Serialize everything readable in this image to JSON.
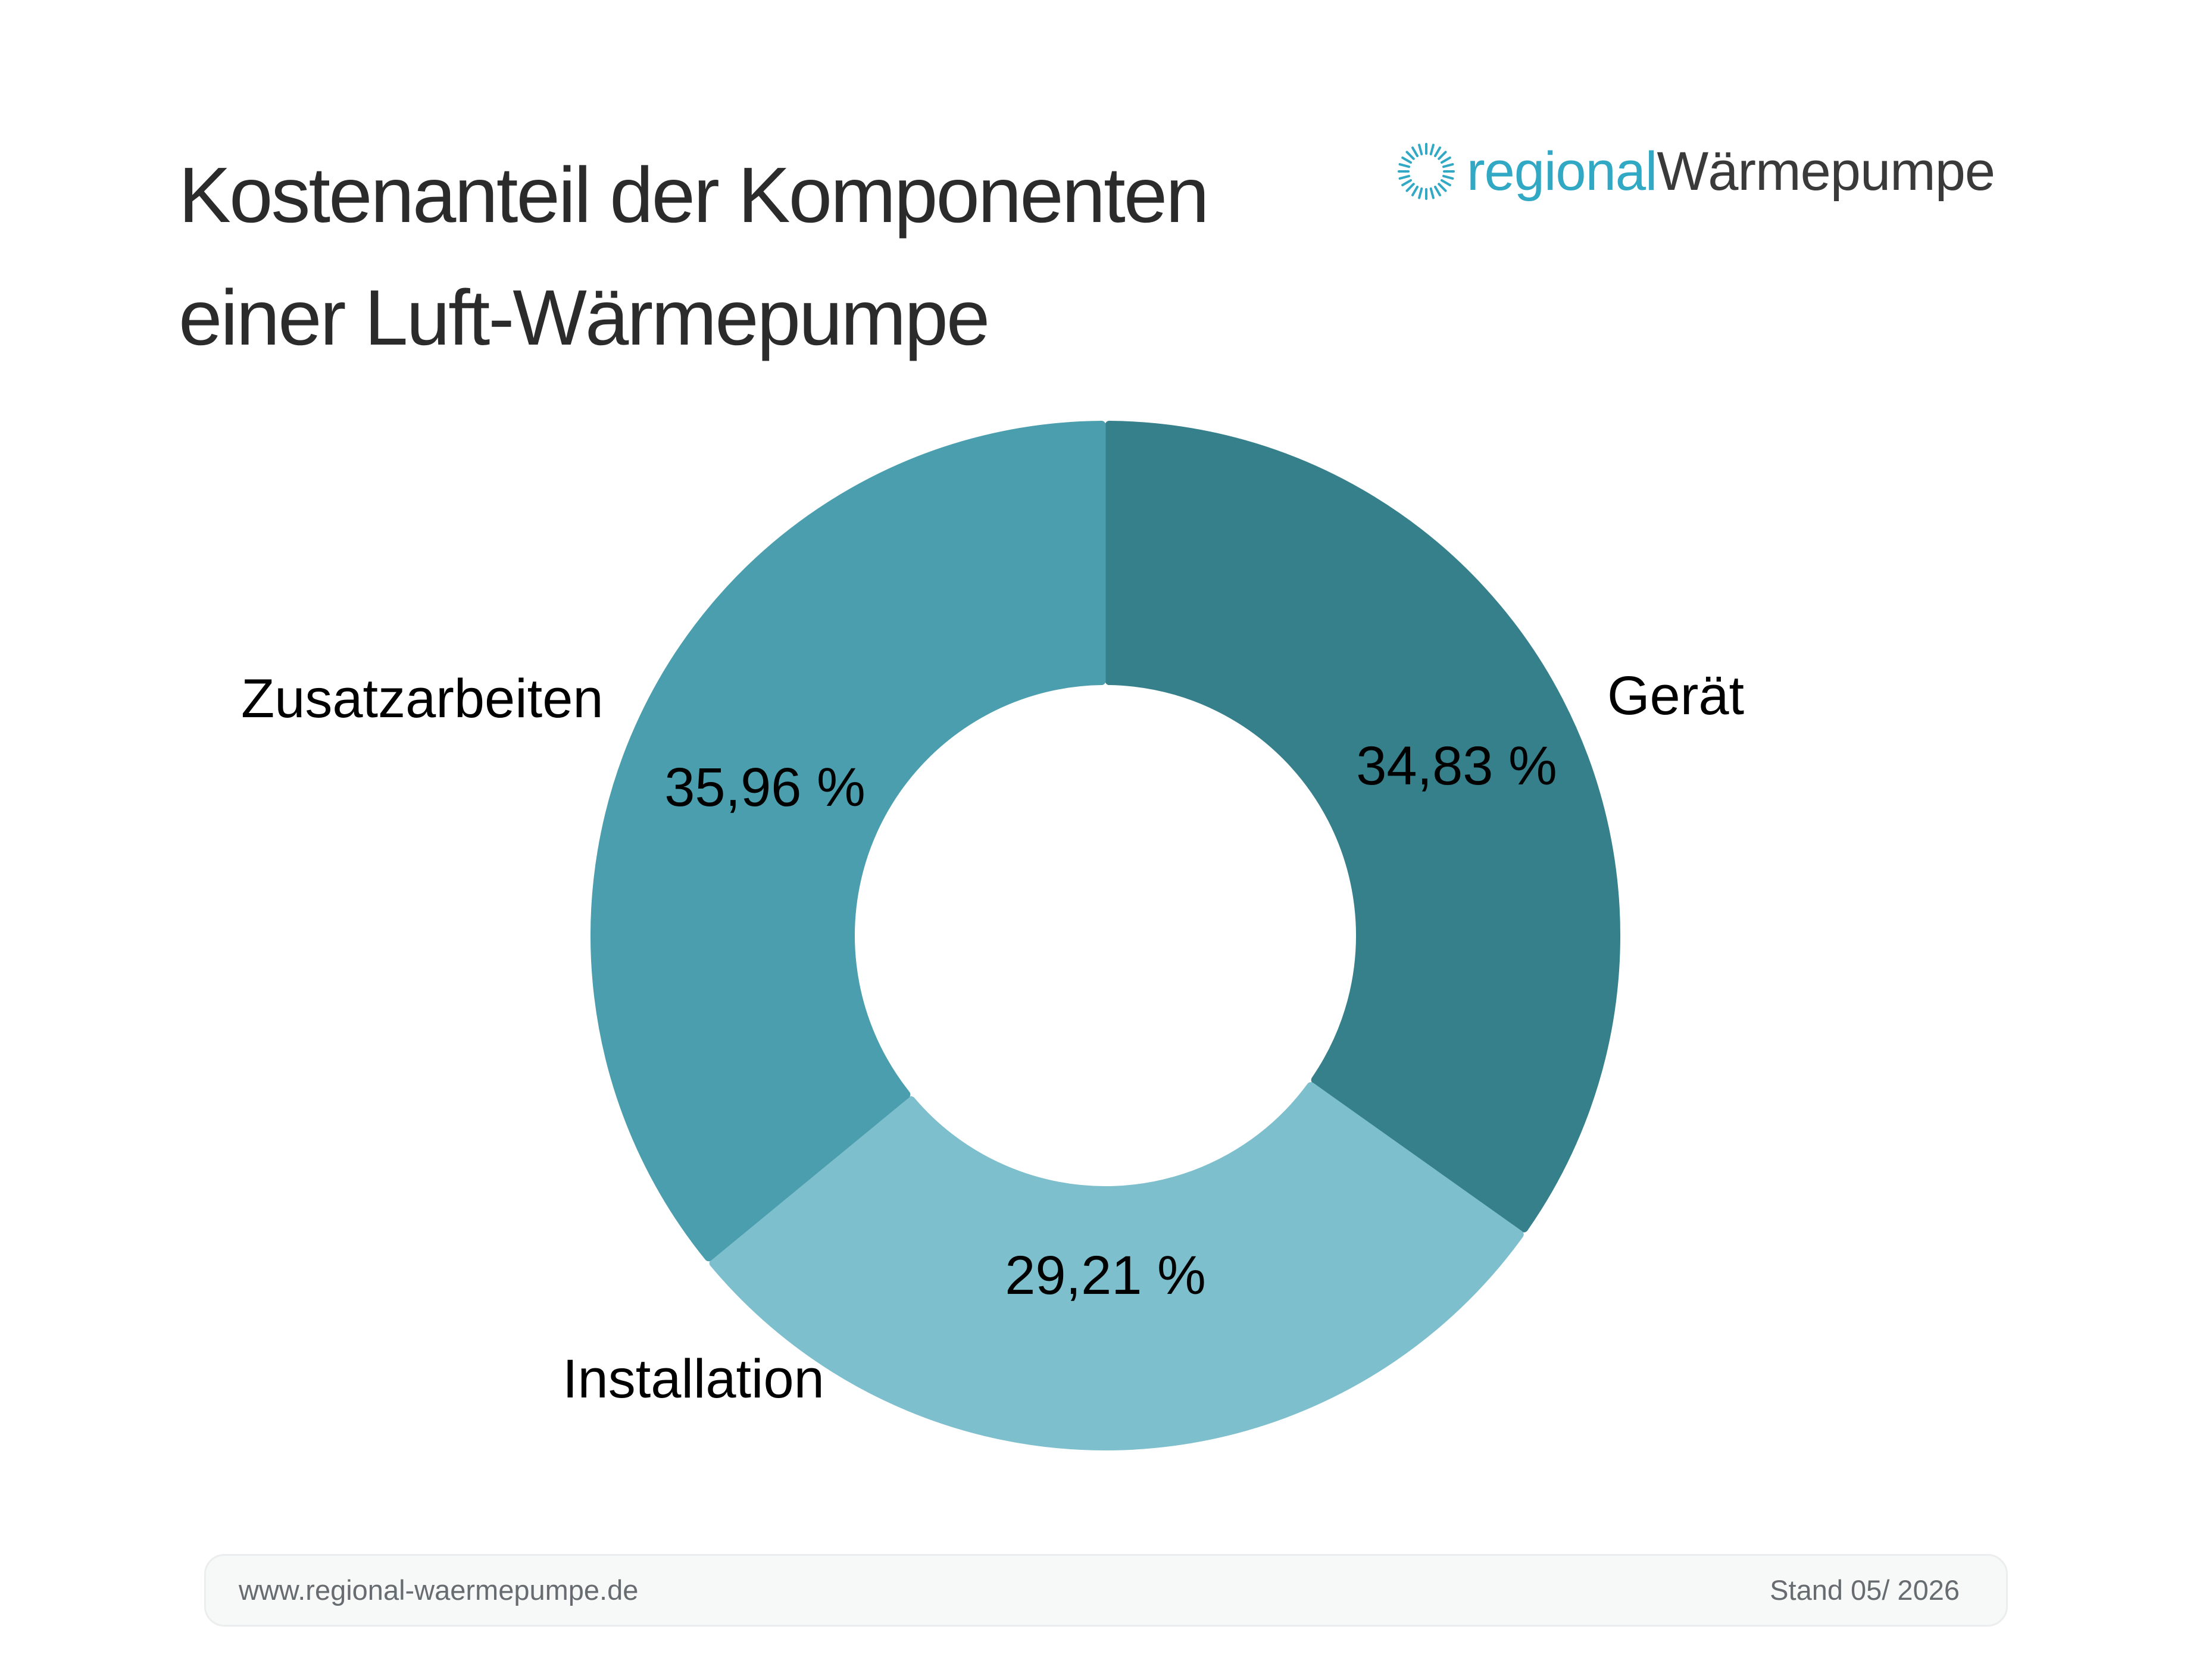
{
  "title": {
    "line1": "Kostenanteil der Komponenten",
    "line2": "einer Luft-Wärmepumpe"
  },
  "logo": {
    "part1": "regional",
    "part2": "Wärmepumpe",
    "icon": "sunburst-icon",
    "color_accent": "#31a8c4",
    "color_text": "#3a3a3a"
  },
  "chart_data": {
    "type": "pie",
    "style": "donut",
    "title": "Kostenanteil der Komponenten einer Luft-Wärmepumpe",
    "slices": [
      {
        "label": "Gerät",
        "value": 34.83,
        "value_label": "34,83 %",
        "color": "#36808c"
      },
      {
        "label": "Installation",
        "value": 29.21,
        "value_label": "29,21 %",
        "color": "#7dbfcc"
      },
      {
        "label": "Zusatzarbeiten",
        "value": 35.96,
        "value_label": "35,96 %",
        "color": "#4b9eae"
      }
    ]
  },
  "footer": {
    "url": "www.regional-waermepumpe.de",
    "date": "Stand 05/ 2026"
  }
}
